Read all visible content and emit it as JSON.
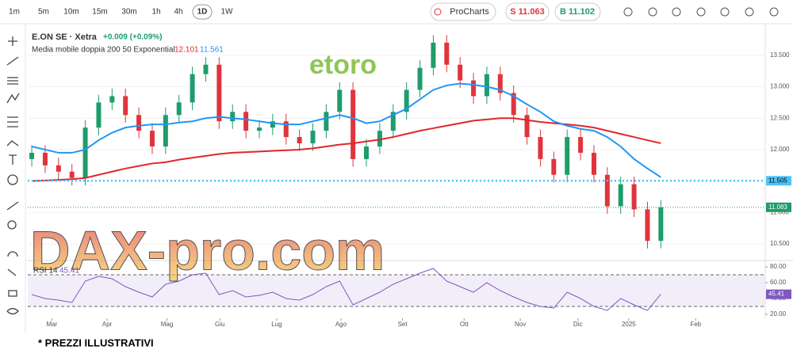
{
  "toolbar": {
    "timeframes": [
      "1m",
      "5m",
      "10m",
      "15m",
      "30m",
      "1h",
      "4h",
      "1D",
      "1W"
    ],
    "active": 7,
    "procharts": "ProCharts",
    "sell": "S 11.063",
    "buy": "B 11.102"
  },
  "legend": {
    "instrument": "E.ON SE · Xetra",
    "change": "+0.009 (+0.09%)",
    "indicator": "Media mobile doppia 200 50 Exponential"
  },
  "watermarks": {
    "broker": "etoro",
    "site": "DAX-pro.com"
  },
  "footer": "* PREZZI ILLUSTRATIVI",
  "chart_data": {
    "type": "candlestick",
    "up_color": "#1f9c6b",
    "down_color": "#e0343c",
    "open": [
      11.85,
      11.95,
      11.75,
      11.65,
      11.55,
      12.35,
      12.75,
      12.85,
      12.55,
      12.3,
      12.05,
      12.55,
      12.75,
      13.2,
      13.35,
      12.45,
      12.6,
      12.3,
      12.35,
      12.45,
      12.2,
      12.1,
      12.3,
      12.6,
      12.95,
      11.85,
      12.05,
      12.3,
      12.6,
      12.95,
      13.3,
      13.7,
      13.35,
      13.1,
      12.85,
      13.2,
      12.9,
      12.55,
      12.2,
      11.85,
      11.6,
      12.2,
      11.95,
      11.6,
      11.1,
      11.45,
      11.05,
      10.55
    ],
    "high": [
      12.07,
      12.07,
      11.87,
      11.77,
      12.47,
      12.87,
      12.97,
      12.97,
      12.67,
      12.42,
      12.67,
      12.87,
      13.32,
      13.47,
      13.47,
      12.72,
      12.72,
      12.47,
      12.57,
      12.57,
      12.32,
      12.42,
      12.72,
      13.07,
      13.07,
      12.17,
      12.42,
      12.72,
      13.07,
      13.42,
      13.82,
      13.82,
      13.47,
      13.22,
      13.32,
      13.32,
      13.02,
      12.67,
      12.32,
      11.97,
      12.32,
      12.32,
      12.07,
      11.72,
      11.57,
      11.57,
      11.17,
      11.2
    ],
    "low": [
      11.73,
      11.63,
      11.53,
      11.43,
      11.43,
      12.23,
      12.63,
      12.43,
      12.18,
      11.93,
      11.93,
      12.43,
      12.63,
      13.08,
      12.33,
      12.33,
      12.18,
      12.18,
      12.23,
      12.08,
      11.98,
      11.98,
      12.18,
      12.48,
      11.73,
      11.73,
      11.93,
      12.18,
      12.48,
      12.83,
      13.18,
      13.23,
      12.98,
      12.73,
      12.73,
      12.78,
      12.43,
      12.08,
      11.73,
      11.48,
      11.48,
      11.83,
      11.48,
      10.98,
      10.98,
      10.93,
      10.43,
      10.43
    ],
    "close": [
      11.95,
      11.75,
      11.65,
      11.55,
      12.35,
      12.75,
      12.85,
      12.55,
      12.3,
      12.05,
      12.55,
      12.75,
      13.2,
      13.35,
      12.45,
      12.6,
      12.3,
      12.35,
      12.45,
      12.2,
      12.1,
      12.3,
      12.6,
      12.95,
      11.85,
      12.05,
      12.3,
      12.6,
      12.95,
      13.3,
      13.7,
      13.35,
      13.1,
      12.85,
      13.2,
      12.9,
      12.55,
      12.2,
      11.85,
      11.6,
      12.2,
      11.95,
      11.6,
      11.1,
      11.45,
      11.05,
      10.55,
      11.083
    ],
    "series": [
      {
        "color": "#e0262d",
        "values": [
          11.5,
          11.51,
          11.52,
          11.53,
          11.55,
          11.6,
          11.65,
          11.7,
          11.74,
          11.78,
          11.8,
          11.84,
          11.87,
          11.9,
          11.93,
          11.95,
          11.96,
          11.97,
          11.98,
          11.99,
          12.0,
          12.02,
          12.05,
          12.08,
          12.1,
          12.13,
          12.16,
          12.2,
          12.25,
          12.3,
          12.34,
          12.38,
          12.42,
          12.46,
          12.48,
          12.5,
          12.5,
          12.47,
          12.44,
          12.42,
          12.4,
          12.38,
          12.35,
          12.3,
          12.25,
          12.2,
          12.15,
          12.101
        ]
      },
      {
        "color": "#2196f3",
        "values": [
          12.05,
          12.0,
          11.95,
          11.95,
          12.0,
          12.15,
          12.27,
          12.35,
          12.38,
          12.4,
          12.4,
          12.43,
          12.45,
          12.5,
          12.52,
          12.5,
          12.48,
          12.45,
          12.42,
          12.4,
          12.4,
          12.45,
          12.5,
          12.55,
          12.5,
          12.42,
          12.45,
          12.55,
          12.65,
          12.8,
          12.95,
          13.02,
          13.05,
          13.03,
          13.0,
          12.95,
          12.85,
          12.72,
          12.6,
          12.45,
          12.38,
          12.33,
          12.3,
          12.2,
          12.05,
          11.85,
          11.7,
          11.561
        ]
      }
    ],
    "hline": {
      "value": 11.505,
      "color": "#4fc3f7"
    },
    "ylim": [
      10.25,
      13.9
    ],
    "yticks": [
      {
        "value": 10.5,
        "label": "10.500"
      },
      {
        "value": 11.0,
        "label": "11.000"
      },
      {
        "value": 11.5,
        "label": "11.500"
      },
      {
        "value": 12.0,
        "label": "12.000"
      },
      {
        "value": 12.5,
        "label": "12.500"
      },
      {
        "value": 13.0,
        "label": "13.000"
      },
      {
        "value": 13.5,
        "label": "13.500"
      }
    ],
    "xlim": [
      -0.3,
      54.8
    ],
    "xticks": [
      {
        "value": 1.5,
        "label": "Mar"
      },
      {
        "value": 5.63,
        "label": "Apr"
      },
      {
        "value": 10.1,
        "label": "Mag"
      },
      {
        "value": 14.05,
        "label": "Giu"
      },
      {
        "value": 18.3,
        "label": "Lug"
      },
      {
        "value": 23.1,
        "label": "Ago"
      },
      {
        "value": 27.7,
        "label": "Set"
      },
      {
        "value": 32.3,
        "label": "Ott"
      },
      {
        "value": 36.5,
        "label": "Nov"
      },
      {
        "value": 40.8,
        "label": "Dic"
      },
      {
        "value": 44.6,
        "label": "2025"
      },
      {
        "value": 49.6,
        "label": "Feb"
      }
    ],
    "rsi": {
      "label": "RSI 14",
      "color": "#7e57c2",
      "band": [
        30,
        70
      ],
      "values": [
        45,
        40,
        38,
        35,
        62,
        68,
        65,
        55,
        48,
        42,
        58,
        62,
        70,
        72,
        45,
        50,
        42,
        44,
        48,
        40,
        38,
        45,
        55,
        62,
        32,
        40,
        48,
        58,
        65,
        72,
        78,
        62,
        55,
        48,
        60,
        50,
        42,
        35,
        30,
        28,
        48,
        40,
        30,
        25,
        40,
        32,
        25,
        45.41
      ],
      "ylim": [
        15,
        87
      ],
      "yticks": [
        {
          "value": 20,
          "label": "20.00"
        },
        {
          "value": 40,
          "label": "40.00"
        },
        {
          "value": 60,
          "label": "60.00"
        },
        {
          "value": 80,
          "label": "80.00"
        }
      ]
    }
  }
}
